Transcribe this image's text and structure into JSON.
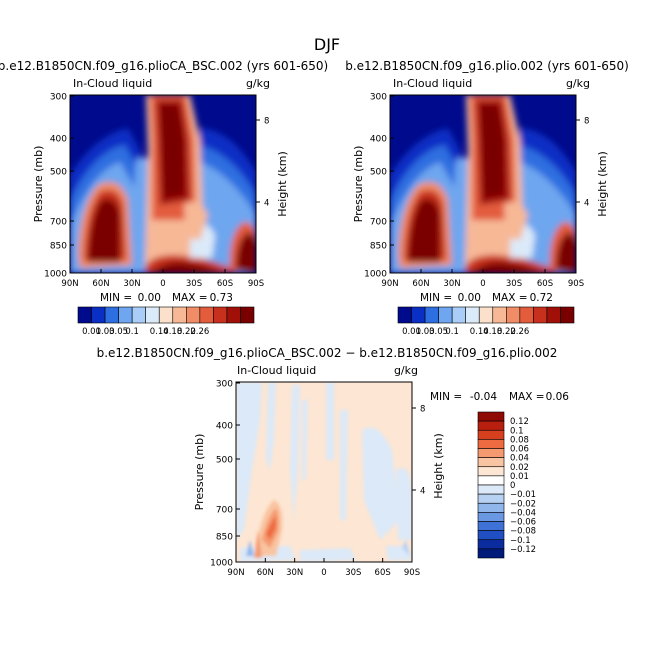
{
  "figure": {
    "title": "DJF"
  },
  "chart_data": [
    {
      "type": "heatmap",
      "title": "b.e12.B1850CN.f09_g16.plioCA_BSC.002 (yrs 601-650)",
      "left_label": "In-Cloud liquid",
      "right_label": "g/kg",
      "ylabel": "Pressure (mb)",
      "ylabel_right": "Height (km)",
      "x_ticks": [
        "90N",
        "60N",
        "30N",
        "0",
        "30S",
        "60S",
        "90S"
      ],
      "y_ticks": [
        "300",
        "400",
        "500",
        "700",
        "850",
        "1000"
      ],
      "y_ticks_right": [
        "8",
        "4"
      ],
      "ylim": [
        1000,
        300
      ],
      "stats": {
        "min_label": "MIN =",
        "min": "0.00",
        "max_label": "MAX =",
        "max": "0.73"
      },
      "levels": [
        "0.01",
        "0.03",
        "0.05",
        "0.1",
        "0.14",
        "0.18",
        "0.22",
        "0.26"
      ]
    },
    {
      "type": "heatmap",
      "title": "b.e12.B1850CN.f09_g16.plio.002 (yrs 601-650)",
      "left_label": "In-Cloud liquid",
      "right_label": "g/kg",
      "ylabel": "Pressure (mb)",
      "ylabel_right": "Height (km)",
      "x_ticks": [
        "90N",
        "60N",
        "30N",
        "0",
        "30S",
        "60S",
        "90S"
      ],
      "y_ticks": [
        "300",
        "400",
        "500",
        "700",
        "850",
        "1000"
      ],
      "y_ticks_right": [
        "8",
        "4"
      ],
      "ylim": [
        1000,
        300
      ],
      "stats": {
        "min_label": "MIN =",
        "min": "0.00",
        "max_label": "MAX =",
        "max": "0.72"
      },
      "levels": [
        "0.01",
        "0.03",
        "0.05",
        "0.1",
        "0.14",
        "0.18",
        "0.22",
        "0.26"
      ]
    },
    {
      "type": "heatmap",
      "title": "b.e12.B1850CN.f09_g16.plioCA_BSC.002 − b.e12.B1850CN.f09_g16.plio.002",
      "left_label": "In-Cloud liquid",
      "right_label": "g/kg",
      "ylabel": "Pressure (mb)",
      "ylabel_right": "Height (km)",
      "x_ticks": [
        "90N",
        "60N",
        "30N",
        "0",
        "30S",
        "60S",
        "90S"
      ],
      "y_ticks": [
        "300",
        "400",
        "500",
        "700",
        "850",
        "1000"
      ],
      "y_ticks_right": [
        "8",
        "4"
      ],
      "ylim": [
        1000,
        300
      ],
      "stats": {
        "min_label": "MIN =",
        "min": "-0.04",
        "max_label": "MAX =",
        "max": "0.06"
      },
      "levels": [
        "0.12",
        "0.1",
        "0.08",
        "0.06",
        "0.04",
        "0.02",
        "0.01",
        "0",
        "−0.01",
        "−0.02",
        "−0.04",
        "−0.06",
        "−0.08",
        "−0.1",
        "−0.12"
      ]
    }
  ],
  "colors": {
    "abs_scale": [
      "#000a8c",
      "#0a2fc4",
      "#2d6ee0",
      "#6ea6ef",
      "#a9cdf7",
      "#dbeaf9",
      "#fbe1cc",
      "#f7b896",
      "#f08c66",
      "#e35c3c",
      "#c8301e",
      "#a01008",
      "#7a0000"
    ],
    "diff_scale": [
      "#8f0a05",
      "#b81f0f",
      "#d6401e",
      "#ee6a40",
      "#f59a70",
      "#f9c4a1",
      "#fde6d3",
      "#ffffff",
      "#dce9f8",
      "#b7d1f3",
      "#90b6ec",
      "#6a98e3",
      "#3f72d6",
      "#1f4fc3",
      "#0a2c9f",
      "#001a7a"
    ]
  }
}
